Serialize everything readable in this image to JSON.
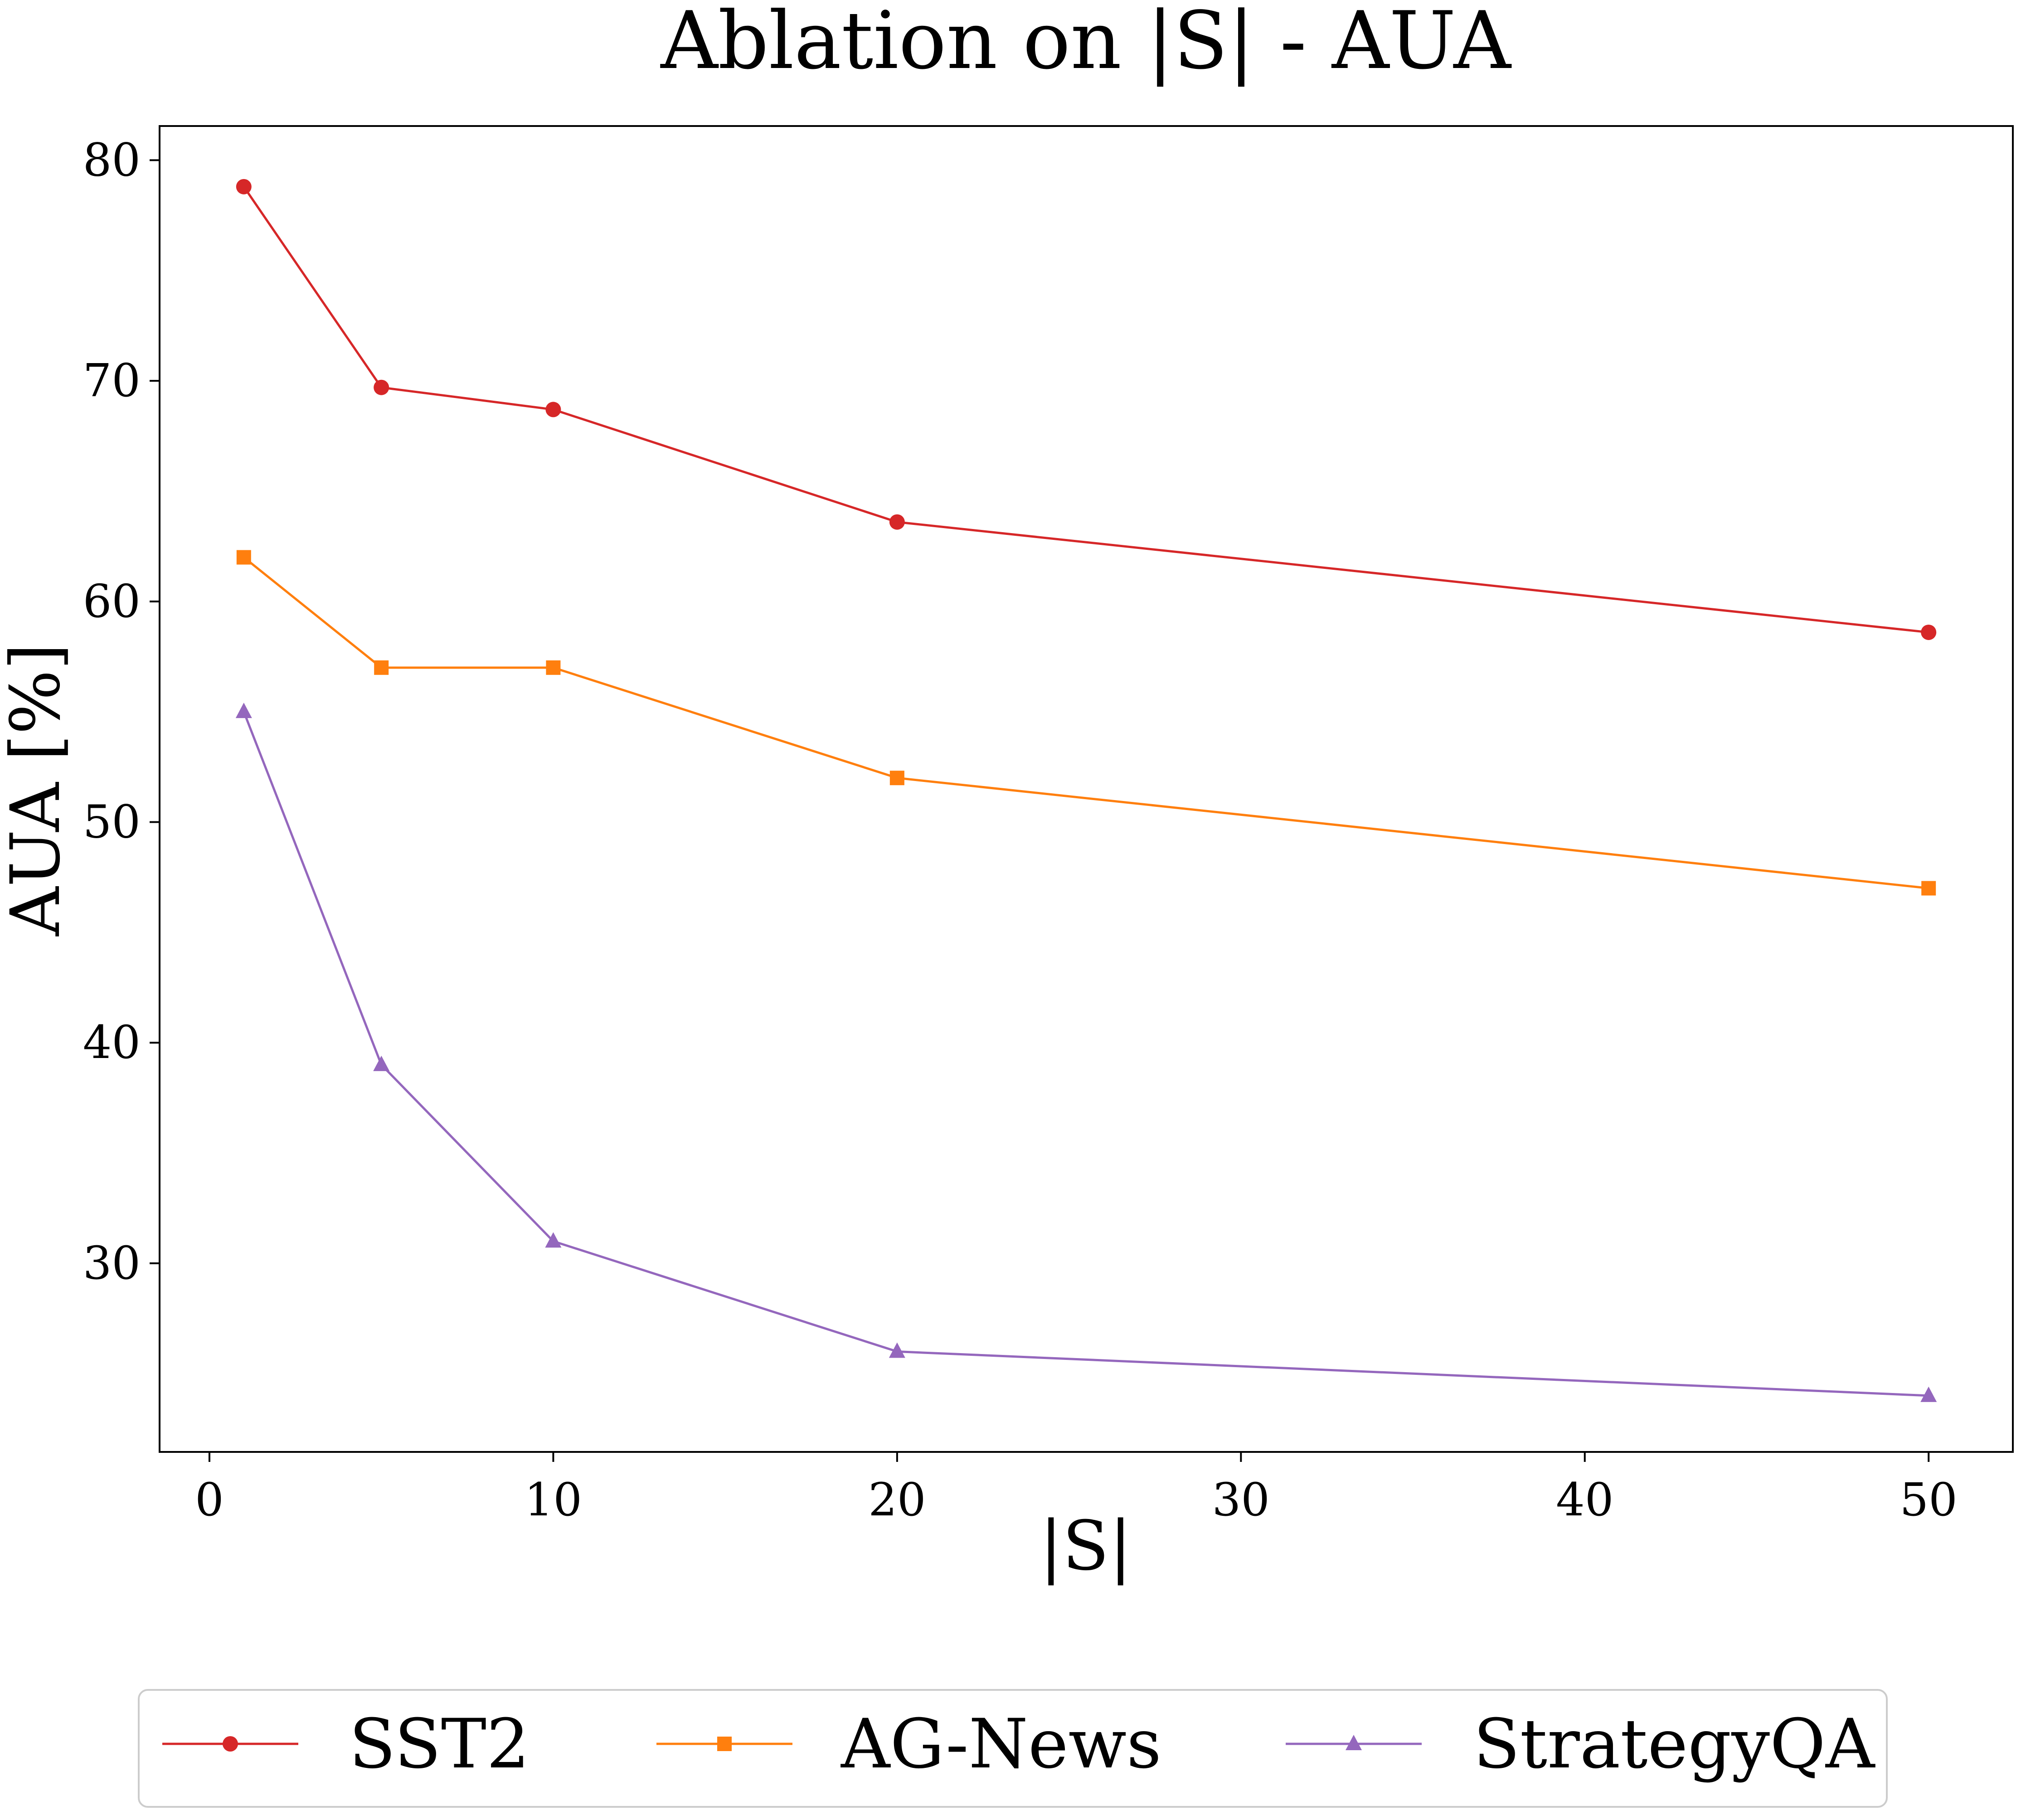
{
  "chart_data": {
    "type": "line",
    "title": "Ablation on |S| - AUA",
    "xlabel": "|S|",
    "ylabel": "AUA [%]",
    "xlim": [
      -1.45,
      52.45
    ],
    "ylim": [
      21.45,
      81.55
    ],
    "xticks": [
      0,
      10,
      20,
      30,
      40,
      50
    ],
    "yticks": [
      30,
      40,
      50,
      60,
      70,
      80
    ],
    "x": [
      1,
      5,
      10,
      20,
      50
    ],
    "grid": false,
    "legend_position": "bottom-center",
    "series": [
      {
        "name": "SST2",
        "color": "#d62728",
        "marker": "circle",
        "values": [
          78.8,
          69.7,
          68.7,
          63.6,
          58.6
        ]
      },
      {
        "name": "AG-News",
        "color": "#ff7f0e",
        "marker": "square",
        "values": [
          62.0,
          57.0,
          57.0,
          52.0,
          47.0
        ]
      },
      {
        "name": "StrategyQA",
        "color": "#9467bd",
        "marker": "triangle",
        "values": [
          55.0,
          39.0,
          31.0,
          26.0,
          24.0
        ]
      }
    ]
  }
}
